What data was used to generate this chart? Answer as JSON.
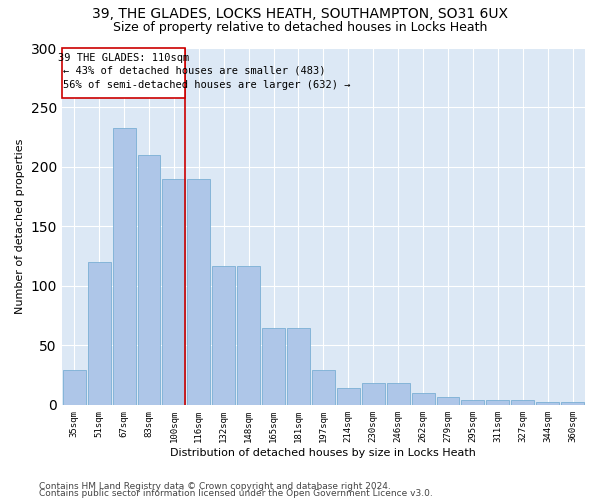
{
  "title": "39, THE GLADES, LOCKS HEATH, SOUTHAMPTON, SO31 6UX",
  "subtitle": "Size of property relative to detached houses in Locks Heath",
  "xlabel": "Distribution of detached houses by size in Locks Heath",
  "ylabel": "Number of detached properties",
  "categories": [
    "35sqm",
    "51sqm",
    "67sqm",
    "83sqm",
    "100sqm",
    "116sqm",
    "132sqm",
    "148sqm",
    "165sqm",
    "181sqm",
    "197sqm",
    "214sqm",
    "230sqm",
    "246sqm",
    "262sqm",
    "279sqm",
    "295sqm",
    "311sqm",
    "327sqm",
    "344sqm",
    "360sqm"
  ],
  "values": [
    29,
    120,
    233,
    210,
    190,
    190,
    117,
    117,
    65,
    65,
    29,
    14,
    18,
    18,
    10,
    7,
    4,
    4,
    4,
    2,
    2
  ],
  "bar_color": "#aec6e8",
  "bar_edge_color": "#7aafd4",
  "marker_label": "39 THE GLADES: 110sqm",
  "annotation_line1": "← 43% of detached houses are smaller (483)",
  "annotation_line2": "56% of semi-detached houses are larger (632) →",
  "box_color": "#cc0000",
  "vline_x_index": 4,
  "ylim": [
    0,
    300
  ],
  "yticks": [
    0,
    50,
    100,
    150,
    200,
    250,
    300
  ],
  "background_color": "#dce8f5",
  "footer_line1": "Contains HM Land Registry data © Crown copyright and database right 2024.",
  "footer_line2": "Contains public sector information licensed under the Open Government Licence v3.0.",
  "title_fontsize": 10,
  "subtitle_fontsize": 9,
  "axis_label_fontsize": 8,
  "tick_fontsize": 6.5,
  "annotation_fontsize": 7.5,
  "footer_fontsize": 6.5
}
